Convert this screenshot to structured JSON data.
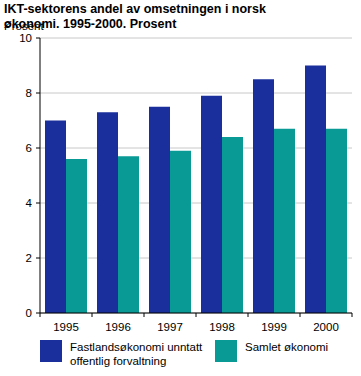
{
  "chart_data": {
    "type": "bar",
    "title": "IKT-sektorens andel av omsetningen i norsk økonomi. 1995-2000. Prosent",
    "y_label": "Prosent",
    "categories": [
      "1995",
      "1996",
      "1997",
      "1998",
      "1999",
      "2000"
    ],
    "series": [
      {
        "name": "Fastlandsøkonomi unntatt offentlig forvaltning",
        "color": "#1a2f9c",
        "values": [
          7.0,
          7.3,
          7.5,
          7.9,
          8.5,
          9.0
        ]
      },
      {
        "name": "Samlet økonomi",
        "color": "#0a9a96",
        "values": [
          5.6,
          5.7,
          5.9,
          6.4,
          6.7,
          6.7
        ]
      }
    ],
    "ylim": [
      0,
      10
    ],
    "yticks": [
      0,
      2,
      4,
      6,
      8,
      10
    ],
    "grid": true,
    "legend": "bottom"
  }
}
